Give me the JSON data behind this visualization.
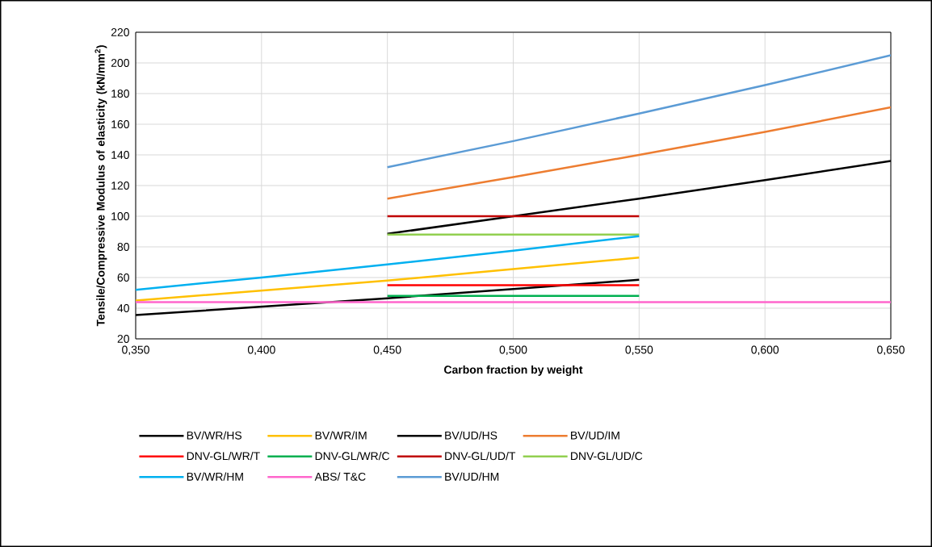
{
  "chart_data": {
    "type": "line",
    "xlabel": "Carbon fraction by weight",
    "ylabel": "Tensile/Compressive Modulus of elasticity (kN/mm$^{2}$)",
    "xlim": [
      0.35,
      0.65
    ],
    "xticks": [
      {
        "value": 0.35,
        "label": "0,350"
      },
      {
        "value": 0.4,
        "label": "0,400"
      },
      {
        "value": 0.45,
        "label": "0,450"
      },
      {
        "value": 0.5,
        "label": "0,500"
      },
      {
        "value": 0.55,
        "label": "0,550"
      },
      {
        "value": 0.6,
        "label": "0,600"
      },
      {
        "value": 0.65,
        "label": "0,650"
      }
    ],
    "ylim": [
      20,
      220
    ],
    "yticks": [
      20,
      40,
      60,
      80,
      100,
      120,
      140,
      160,
      180,
      200,
      220
    ],
    "grid": true,
    "legend": "bottom",
    "marker": "none",
    "line_style": "solid",
    "series": [
      {
        "name": "BV/WR/HS",
        "color": "#000000",
        "x": [
          0.35,
          0.4,
          0.45,
          0.5,
          0.55
        ],
        "values": [
          35.5,
          41,
          46.5,
          52.5,
          58.5
        ]
      },
      {
        "name": "BV/WR/IM",
        "color": "#ffc000",
        "x": [
          0.35,
          0.4,
          0.45,
          0.5,
          0.55
        ],
        "values": [
          45,
          51.5,
          58,
          65.5,
          73
        ]
      },
      {
        "name": "BV/UD/HS",
        "color": "#000000",
        "x": [
          0.45,
          0.5,
          0.55,
          0.6,
          0.65
        ],
        "values": [
          88.5,
          100,
          111.5,
          123.5,
          136
        ]
      },
      {
        "name": "BV/UD/IM",
        "color": "#ed7d31",
        "x": [
          0.45,
          0.5,
          0.55,
          0.6,
          0.65
        ],
        "values": [
          111.5,
          125.5,
          140,
          155,
          171
        ]
      },
      {
        "name": "DNV-GL/WR/T",
        "color": "#ff0000",
        "x": [
          0.45,
          0.55
        ],
        "values": [
          55,
          55
        ]
      },
      {
        "name": "DNV-GL/WR/C",
        "color": "#00b050",
        "x": [
          0.45,
          0.55
        ],
        "values": [
          48,
          48
        ]
      },
      {
        "name": "DNV-GL/UD/T",
        "color": "#c00000",
        "x": [
          0.45,
          0.55
        ],
        "values": [
          100,
          100
        ]
      },
      {
        "name": "DNV-GL/UD/C",
        "color": "#92d050",
        "x": [
          0.45,
          0.55
        ],
        "values": [
          88,
          88
        ]
      },
      {
        "name": "BV/WR/HM",
        "color": "#00b0f0",
        "x": [
          0.35,
          0.4,
          0.45,
          0.5,
          0.55
        ],
        "values": [
          52,
          60,
          68.5,
          77.5,
          87
        ]
      },
      {
        "name": "ABS/ T&C",
        "color": "#ff66cc",
        "x": [
          0.35,
          0.65
        ],
        "values": [
          44,
          44
        ]
      },
      {
        "name": "BV/UD/HM",
        "color": "#5b9bd5",
        "x": [
          0.45,
          0.5,
          0.55,
          0.6,
          0.65
        ],
        "values": [
          132,
          149,
          167,
          185.5,
          205
        ]
      }
    ]
  }
}
